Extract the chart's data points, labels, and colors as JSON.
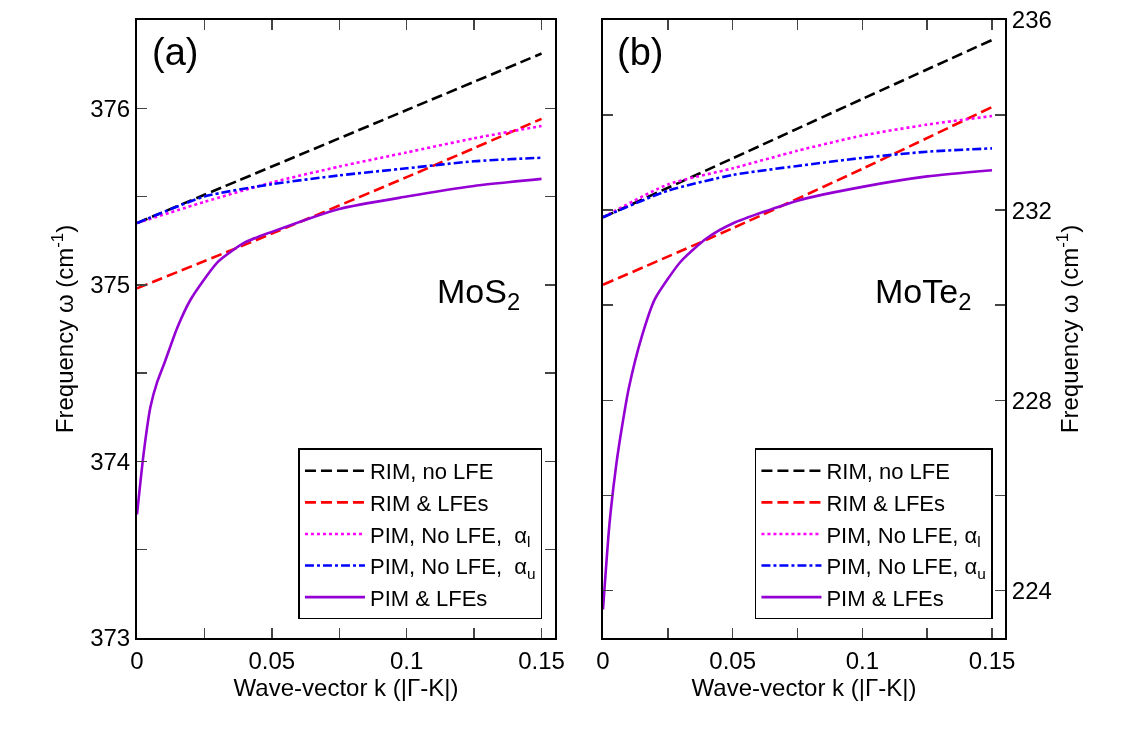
{
  "chart_data": [
    {
      "type": "line",
      "xlabel": "Wave-vector k (|Γ-K|)",
      "ylabel": "Frequency ω (cm$^{-1}$)",
      "annotations": [
        "(a)",
        "MoS$_{2}$"
      ],
      "legend": "bottom right",
      "grid": false,
      "xlim": [
        0,
        0.155
      ],
      "xticks": [
        0,
        {
          "value": 0.025,
          "label": null
        },
        0.05,
        {
          "value": 0.075,
          "label": null
        },
        0.1,
        {
          "value": 0.125,
          "label": null
        },
        0.15
      ],
      "ylim": [
        373,
        376.5
      ],
      "yticks": [
        373,
        {
          "value": 373.5,
          "label": null
        },
        374,
        {
          "value": 374.5,
          "label": null
        },
        375,
        {
          "value": 375.5,
          "label": null
        },
        376
      ],
      "series": [
        {
          "name": "RIM, no LFE",
          "color": "#000000",
          "line_style": "dashed",
          "x": [
            0,
            0.05,
            0.1,
            0.15
          ],
          "values": [
            375.35,
            375.67,
            375.99,
            376.31
          ]
        },
        {
          "name": "RIM & LFEs",
          "color": "#ff0000",
          "line_style": "dashed",
          "x": [
            0,
            0.05,
            0.1,
            0.15
          ],
          "values": [
            374.98,
            375.29,
            375.61,
            375.94
          ]
        },
        {
          "name": "PIM, No LFE,  α$_{l}$",
          "color": "#ff00ff",
          "line_style": "dotted",
          "x": [
            0,
            0.025,
            0.05,
            0.075,
            0.1,
            0.125,
            0.15
          ],
          "values": [
            375.35,
            375.47,
            375.58,
            375.67,
            375.75,
            375.83,
            375.9
          ]
        },
        {
          "name": "PIM, No LFE,  α$_{u}$",
          "color": "#0000ff",
          "line_style": "dashdot",
          "x": [
            0,
            0.025,
            0.05,
            0.075,
            0.1,
            0.125,
            0.15
          ],
          "values": [
            375.35,
            375.5,
            375.57,
            375.62,
            375.66,
            375.7,
            375.72
          ]
        },
        {
          "name": "PIM & LFEs",
          "color": "#9400d3",
          "line_style": "solid",
          "x": [
            0,
            0.0025,
            0.005,
            0.0075,
            0.01,
            0.015,
            0.02,
            0.03,
            0.04,
            0.05,
            0.075,
            0.1,
            0.125,
            0.15
          ],
          "values": [
            373.7,
            374.05,
            374.31,
            374.45,
            374.55,
            374.76,
            374.92,
            375.13,
            375.24,
            375.3,
            375.43,
            375.5,
            375.56,
            375.6
          ]
        }
      ]
    },
    {
      "type": "line",
      "xlabel": "Wave-vector k (|Γ-K|)",
      "ylabel": "Frequency ω (cm$^{-1}$)",
      "annotations": [
        "(b)",
        "MoTe$_{2}$"
      ],
      "legend": "bottom right",
      "grid": false,
      "xlim": [
        0,
        0.155
      ],
      "xticks": [
        0,
        {
          "value": 0.025,
          "label": null
        },
        0.05,
        {
          "value": 0.075,
          "label": null
        },
        0.1,
        {
          "value": 0.125,
          "label": null
        },
        0.15
      ],
      "ylim": [
        223,
        236
      ],
      "yticks": [
        224,
        {
          "value": 226,
          "label": null
        },
        228,
        {
          "value": 230,
          "label": null
        },
        232,
        {
          "value": 234,
          "label": null
        },
        236
      ],
      "series": [
        {
          "name": "RIM, no LFE",
          "color": "#000000",
          "line_style": "dashed",
          "x": [
            0,
            0.05,
            0.1,
            0.15
          ],
          "values": [
            231.85,
            233.09,
            234.34,
            235.58
          ]
        },
        {
          "name": "RIM & LFEs",
          "color": "#ff0000",
          "line_style": "dashed",
          "x": [
            0,
            0.05,
            0.1,
            0.15
          ],
          "values": [
            230.43,
            231.62,
            232.87,
            234.17
          ]
        },
        {
          "name": "PIM, No LFE, α$_{l}$",
          "color": "#ff00ff",
          "line_style": "dotted",
          "x": [
            0,
            0.025,
            0.05,
            0.075,
            0.1,
            0.125,
            0.15
          ],
          "values": [
            231.85,
            232.54,
            232.88,
            233.25,
            233.57,
            233.8,
            233.98
          ]
        },
        {
          "name": "PIM, No LFE, α$_{u}$",
          "color": "#0000ff",
          "line_style": "dashdot",
          "x": [
            0,
            0.025,
            0.05,
            0.075,
            0.1,
            0.125,
            0.15
          ],
          "values": [
            231.85,
            232.41,
            232.74,
            232.93,
            233.1,
            233.23,
            233.3
          ]
        },
        {
          "name": "PIM & LFEs",
          "color": "#9400d3",
          "line_style": "solid",
          "x": [
            0,
            0.0025,
            0.005,
            0.0075,
            0.01,
            0.015,
            0.02,
            0.03,
            0.04,
            0.05,
            0.075,
            0.1,
            0.125,
            0.15
          ],
          "values": [
            223.6,
            225.4,
            226.6,
            227.5,
            228.27,
            229.35,
            230.13,
            230.92,
            231.41,
            231.72,
            232.2,
            232.49,
            232.71,
            232.84
          ]
        }
      ]
    }
  ]
}
